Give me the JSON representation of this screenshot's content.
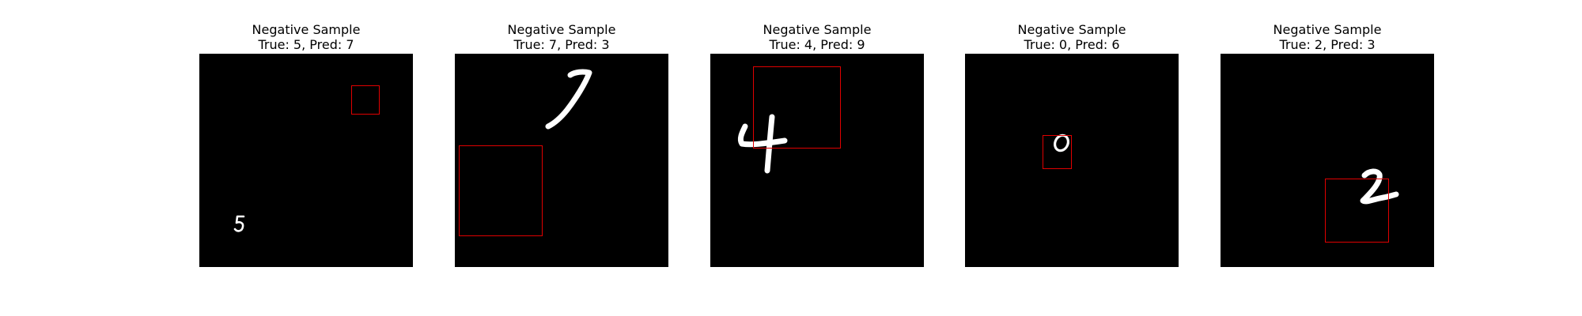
{
  "panels": [
    {
      "title_line1": "Negative Sample",
      "title_line2": "True: 5, Pred: 7",
      "true_digit": 5,
      "pred_digit": 7,
      "digit_color": "#ffffff",
      "box_color": "#e00000"
    },
    {
      "title_line1": "Negative Sample",
      "title_line2": "True: 7, Pred: 3",
      "true_digit": 7,
      "pred_digit": 3,
      "digit_color": "#ffffff",
      "box_color": "#e00000"
    },
    {
      "title_line1": "Negative Sample",
      "title_line2": "True: 4, Pred: 9",
      "true_digit": 4,
      "pred_digit": 9,
      "digit_color": "#ffffff",
      "box_color": "#e00000"
    },
    {
      "title_line1": "Negative Sample",
      "title_line2": "True: 0, Pred: 6",
      "true_digit": 0,
      "pred_digit": 6,
      "digit_color": "#ffffff",
      "box_color": "#e00000"
    },
    {
      "title_line1": "Negative Sample",
      "title_line2": "True: 2, Pred: 3",
      "true_digit": 2,
      "pred_digit": 3,
      "digit_color": "#ffffff",
      "box_color": "#e00000"
    }
  ]
}
